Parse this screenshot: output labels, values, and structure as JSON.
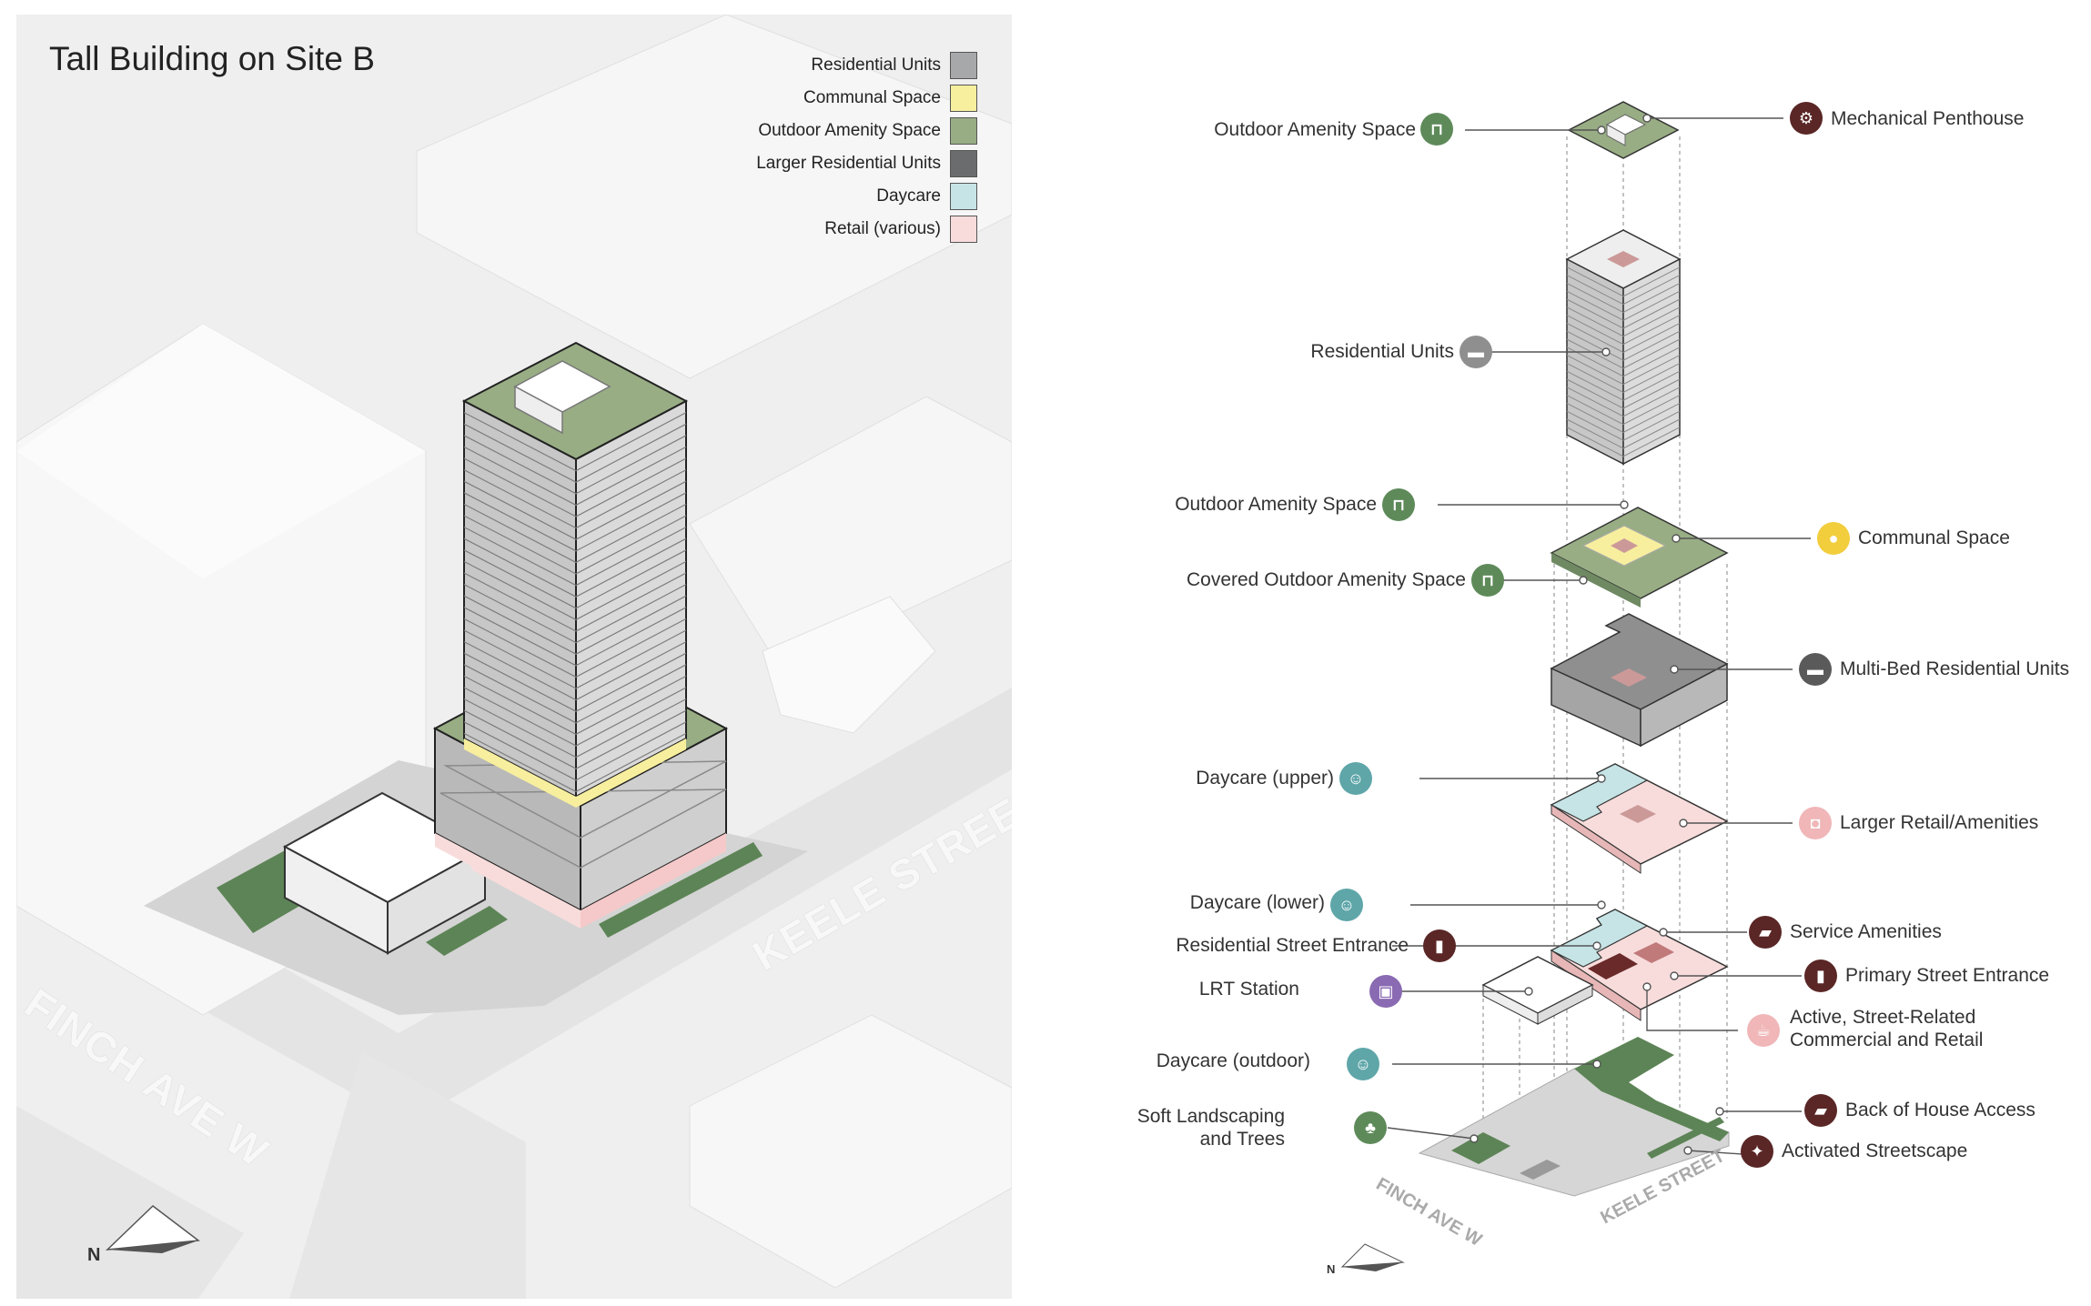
{
  "title": "Tall Building on Site B",
  "legend": [
    {
      "label": "Residential Units",
      "color": "#a7a8aa"
    },
    {
      "label": "Communal Space",
      "color": "#f7ef9e"
    },
    {
      "label": "Outdoor Amenity Space",
      "color": "#98ad84"
    },
    {
      "label": "Larger Residential Units",
      "color": "#6b6c6e"
    },
    {
      "label": "Daycare",
      "color": "#c6e4e6"
    },
    {
      "label": "Retail (various)",
      "color": "#f8dcdc"
    }
  ],
  "streets": {
    "left_finch": "FINCH AVE W",
    "left_keele": "KEELE STREET",
    "right_finch": "FINCH AVE W",
    "right_keele": "KEELE STREET"
  },
  "labels": {
    "outdoor_amenity_top": "Outdoor Amenity Space",
    "mechanical_penthouse": "Mechanical Penthouse",
    "residential_units": "Residential Units",
    "outdoor_amenity_mid": "Outdoor Amenity Space",
    "communal_space": "Communal Space",
    "covered_outdoor": "Covered Outdoor Amenity Space",
    "multi_bed": "Multi-Bed Residential Units",
    "daycare_upper": "Daycare (upper)",
    "larger_retail": "Larger Retail/Amenities",
    "daycare_lower": "Daycare (lower)",
    "service_amenities": "Service Amenities",
    "residential_entrance": "Residential Street Entrance",
    "primary_entrance": "Primary Street Entrance",
    "lrt_station": "LRT Station",
    "active_retail_1": "Active, Street-Related",
    "active_retail_2": "Commercial and Retail",
    "daycare_outdoor": "Daycare (outdoor)",
    "back_of_house": "Back of House Access",
    "soft_landscaping_1": "Soft Landscaping",
    "soft_landscaping_2": "and Trees",
    "activated_streetscape": "Activated Streetscape"
  },
  "icons": {
    "amenity": "picnic-table-icon",
    "penthouse": "gears-icon",
    "residential": "bed-icon",
    "communal": "people-icon",
    "daycare": "child-icon",
    "retail": "shopping-bag-icon",
    "service": "truck-icon",
    "entrance": "door-icon",
    "lrt": "train-icon",
    "cafe": "coffee-cup-icon",
    "tree": "tree-icon",
    "pedestrian": "walking-person-icon"
  },
  "colors": {
    "green": "#5e8a5a",
    "dark_red": "#5a2626",
    "gray_icon": "#8f8f8f",
    "teal": "#5fa6a9",
    "yellow": "#f2cd3c",
    "pink": "#f0b6b8",
    "purple": "#8a6ab2"
  }
}
